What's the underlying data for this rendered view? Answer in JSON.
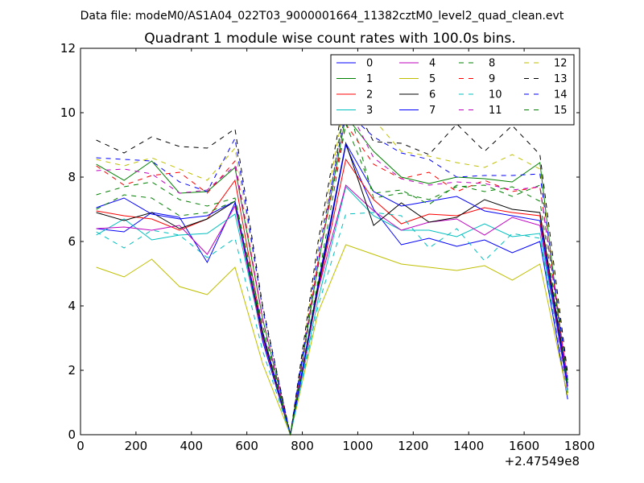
{
  "chart_data": {
    "type": "line",
    "suptitle": "Data file: modeM0/AS1A04_022T03_9000001664_11382cztM0_level2_quad_clean.evt",
    "title": "Quadrant 1 module wise count rates with 100.0s bins.",
    "xlabel": "",
    "ylabel": "",
    "x_offset_label": "+2.47549e8",
    "xlim": [
      0,
      1800
    ],
    "ylim": [
      0,
      12
    ],
    "xticks": [
      0,
      200,
      400,
      600,
      800,
      1000,
      1200,
      1400,
      1600,
      1800
    ],
    "yticks": [
      0,
      2,
      4,
      6,
      8,
      10,
      12
    ],
    "grid": false,
    "legend": {
      "placement": "upper right",
      "ncol": 4
    },
    "x": [
      57,
      157,
      257,
      357,
      457,
      557,
      657,
      757,
      857,
      957,
      1057,
      1157,
      1257,
      1357,
      1457,
      1557,
      1657,
      1757
    ],
    "series": [
      {
        "name": "0",
        "color": "#0000ff",
        "dash": "solid",
        "values": [
          6.4,
          6.3,
          6.9,
          6.75,
          5.35,
          7.2,
          2.9,
          0.0,
          4.5,
          9.0,
          7.0,
          5.9,
          6.1,
          5.85,
          6.05,
          5.65,
          6.0,
          1.1
        ]
      },
      {
        "name": "1",
        "color": "#008000",
        "dash": "solid",
        "values": [
          8.4,
          7.9,
          8.5,
          7.5,
          7.55,
          8.3,
          3.6,
          0.0,
          5.3,
          9.9,
          8.8,
          8.0,
          7.8,
          8.0,
          7.95,
          7.85,
          8.45,
          1.3
        ]
      },
      {
        "name": "2",
        "color": "#ff0000",
        "dash": "solid",
        "values": [
          6.95,
          6.8,
          6.7,
          6.35,
          6.7,
          7.9,
          3.2,
          0.0,
          4.5,
          8.55,
          7.3,
          6.55,
          6.85,
          6.8,
          7.05,
          6.9,
          6.8,
          1.5
        ]
      },
      {
        "name": "3",
        "color": "#00bfbf",
        "dash": "solid",
        "values": [
          6.2,
          6.7,
          6.05,
          6.2,
          6.25,
          6.85,
          3.0,
          0.0,
          4.2,
          7.7,
          6.8,
          6.35,
          6.35,
          6.15,
          6.55,
          6.15,
          6.25,
          1.5
        ]
      },
      {
        "name": "4",
        "color": "#bf00bf",
        "dash": "solid",
        "values": [
          6.4,
          6.45,
          6.35,
          6.5,
          5.6,
          7.1,
          3.0,
          0.0,
          4.5,
          7.75,
          6.95,
          6.35,
          6.6,
          6.7,
          6.2,
          6.75,
          6.5,
          1.4
        ]
      },
      {
        "name": "5",
        "color": "#bfbf00",
        "dash": "solid",
        "values": [
          5.2,
          4.9,
          5.45,
          4.6,
          4.35,
          5.2,
          2.2,
          0.0,
          3.8,
          5.9,
          5.6,
          5.3,
          5.2,
          5.1,
          5.25,
          4.8,
          5.3,
          1.2
        ]
      },
      {
        "name": "6",
        "color": "#000000",
        "dash": "solid",
        "values": [
          6.9,
          6.65,
          6.9,
          6.4,
          6.7,
          7.25,
          3.1,
          0.0,
          4.6,
          9.05,
          6.5,
          7.2,
          6.6,
          6.75,
          7.3,
          7.0,
          6.9,
          1.6
        ]
      },
      {
        "name": "7",
        "color": "#0000ff",
        "dash": "solid",
        "values": [
          7.05,
          7.35,
          6.85,
          6.7,
          6.8,
          7.25,
          3.2,
          0.0,
          4.7,
          9.05,
          7.55,
          7.1,
          7.25,
          7.4,
          6.95,
          6.8,
          6.65,
          1.5
        ]
      },
      {
        "name": "8",
        "color": "#008000",
        "dash": "dashed",
        "values": [
          7.45,
          7.7,
          7.85,
          7.3,
          7.1,
          7.35,
          3.4,
          0.0,
          5.2,
          10.45,
          7.35,
          7.5,
          7.3,
          7.7,
          7.75,
          7.4,
          7.75,
          1.6
        ]
      },
      {
        "name": "9",
        "color": "#ff0000",
        "dash": "dashed",
        "values": [
          8.35,
          7.75,
          8.05,
          8.15,
          7.5,
          8.5,
          3.6,
          0.0,
          5.4,
          9.65,
          8.4,
          7.95,
          8.15,
          7.55,
          7.9,
          7.55,
          7.7,
          1.7
        ]
      },
      {
        "name": "10",
        "color": "#00bfbf",
        "dash": "dashed",
        "values": [
          6.3,
          5.8,
          6.35,
          6.2,
          5.5,
          6.1,
          2.6,
          0.0,
          4.0,
          6.85,
          6.9,
          6.8,
          5.8,
          6.4,
          5.4,
          6.25,
          6.1,
          1.3
        ]
      },
      {
        "name": "11",
        "color": "#bf00bf",
        "dash": "dashed",
        "values": [
          8.2,
          8.25,
          8.1,
          7.5,
          7.6,
          8.35,
          3.6,
          0.0,
          5.3,
          10.3,
          8.6,
          7.95,
          7.75,
          7.85,
          7.8,
          7.6,
          7.7,
          1.6
        ]
      },
      {
        "name": "12",
        "color": "#bfbf00",
        "dash": "dashed",
        "values": [
          8.55,
          8.35,
          8.6,
          8.25,
          7.9,
          8.9,
          3.9,
          0.0,
          5.8,
          10.5,
          9.8,
          8.8,
          8.65,
          8.45,
          8.3,
          8.7,
          8.25,
          1.8
        ]
      },
      {
        "name": "13",
        "color": "#000000",
        "dash": "dashed",
        "values": [
          9.15,
          8.75,
          9.25,
          8.95,
          8.9,
          9.5,
          4.0,
          0.0,
          6.0,
          10.75,
          9.1,
          9.05,
          8.7,
          9.65,
          8.8,
          9.6,
          8.7,
          1.9
        ]
      },
      {
        "name": "14",
        "color": "#0000ff",
        "dash": "dashed",
        "values": [
          8.6,
          8.55,
          8.5,
          7.85,
          7.55,
          9.2,
          3.9,
          0.0,
          5.6,
          10.05,
          9.25,
          8.75,
          8.55,
          8.0,
          8.05,
          8.05,
          8.1,
          1.7
        ]
      },
      {
        "name": "15",
        "color": "#008000",
        "dash": "dashed",
        "values": [
          7.0,
          7.45,
          7.35,
          6.8,
          6.9,
          7.25,
          3.2,
          0.0,
          4.8,
          9.65,
          7.5,
          7.6,
          7.15,
          7.75,
          7.55,
          7.7,
          7.25,
          1.6
        ]
      }
    ]
  }
}
